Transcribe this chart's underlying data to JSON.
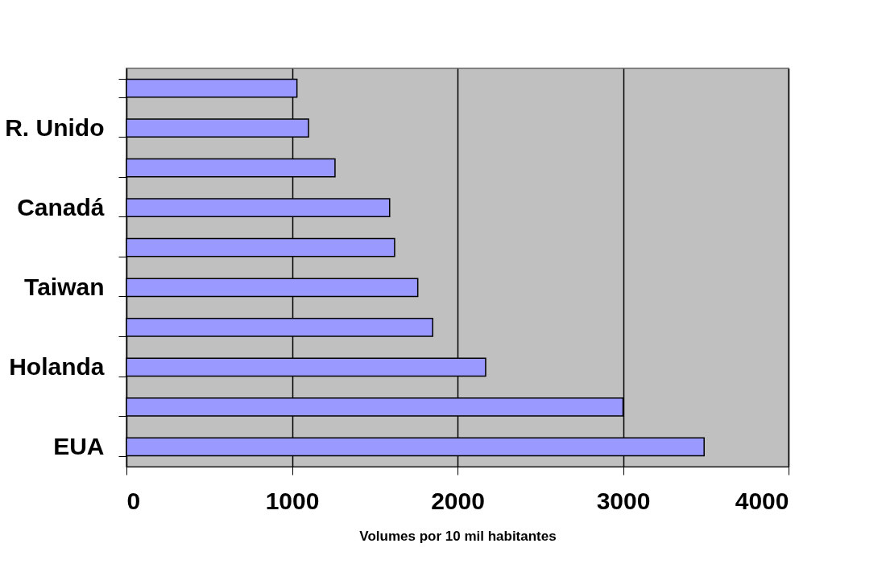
{
  "chart_data": {
    "type": "bar",
    "orientation": "horizontal",
    "xlabel": "Volumes por 10 mil habitantes",
    "categories": [
      null,
      "R. Unido",
      null,
      "Canadá",
      null,
      "Taiwan",
      null,
      "Holanda",
      null,
      "EUA"
    ],
    "values": [
      1030,
      1100,
      1260,
      1590,
      1620,
      1760,
      1850,
      2170,
      3000,
      3490
    ],
    "color": "#9999ff",
    "xlim": [
      0,
      4000
    ],
    "xticks": [
      0,
      1000,
      2000,
      3000,
      4000
    ],
    "grid": "x"
  }
}
